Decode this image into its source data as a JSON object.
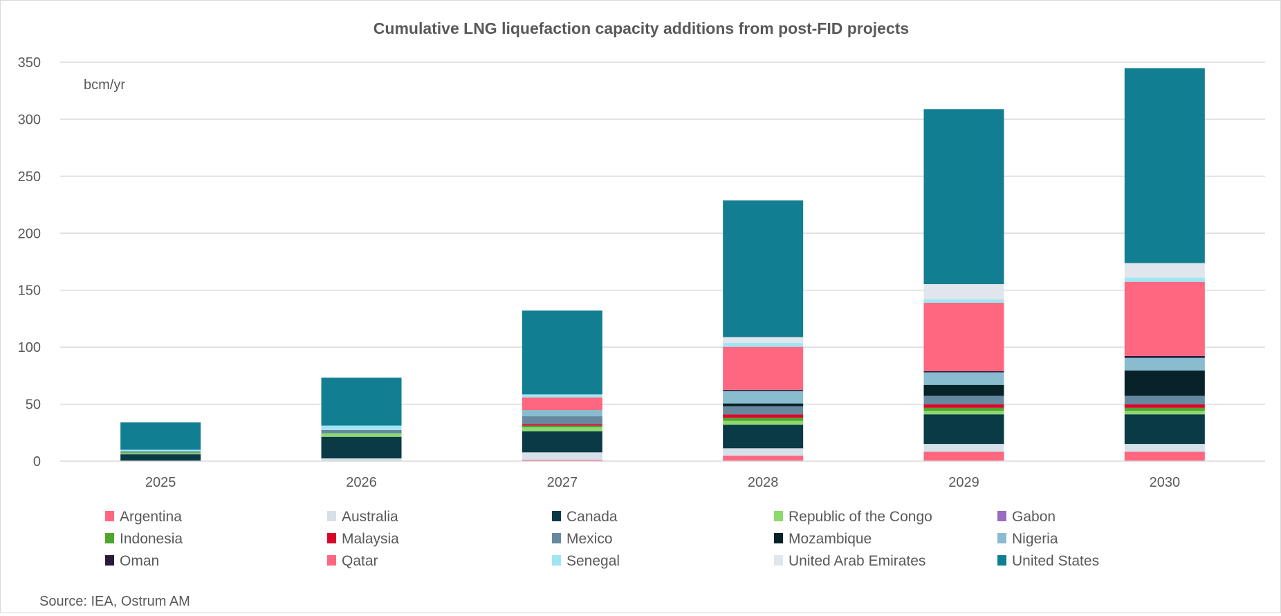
{
  "chart_data": {
    "type": "bar",
    "stacked": true,
    "title": "Cumulative LNG liquefaction capacity additions from post-FID projects",
    "unit_label": "bcm/yr",
    "xlabel": "",
    "ylabel": "",
    "ylim": [
      0,
      350
    ],
    "yticks": [
      0,
      50,
      100,
      150,
      200,
      250,
      300,
      350
    ],
    "grid": true,
    "legend_position": "bottom",
    "categories": [
      "2025",
      "2026",
      "2027",
      "2028",
      "2029",
      "2030"
    ],
    "series": [
      {
        "name": "Argentina",
        "color": "#FF6680",
        "values": [
          0,
          0,
          1.2,
          4.8,
          8.2,
          8.2
        ]
      },
      {
        "name": "Australia",
        "color": "#D6E0E8",
        "values": [
          0,
          2.4,
          6.5,
          6.5,
          6.9,
          6.9
        ]
      },
      {
        "name": "Canada",
        "color": "#0A3A46",
        "values": [
          6,
          19,
          18.5,
          20.6,
          26,
          26
        ]
      },
      {
        "name": "Republic of the Congo",
        "color": "#8CD96E",
        "values": [
          1,
          3,
          3.4,
          3.4,
          3,
          3
        ]
      },
      {
        "name": "Gabon",
        "color": "#9B6BC4",
        "values": [
          0,
          0,
          0,
          0,
          0,
          0
        ]
      },
      {
        "name": "Indonesia",
        "color": "#4EA52E",
        "values": [
          0.5,
          0,
          1.5,
          2.7,
          2.7,
          2.7
        ]
      },
      {
        "name": "Malaysia",
        "color": "#D9062A",
        "values": [
          0,
          0,
          1.3,
          3,
          3,
          3
        ]
      },
      {
        "name": "Mexico",
        "color": "#66899F",
        "values": [
          1,
          3,
          7,
          7.2,
          7.5,
          7.5
        ]
      },
      {
        "name": "Mozambique",
        "color": "#08222A",
        "values": [
          0,
          0,
          0,
          2.4,
          9.6,
          22.3
        ]
      },
      {
        "name": "Nigeria",
        "color": "#88BCCE",
        "values": [
          0,
          0,
          5.5,
          11,
          11,
          11
        ]
      },
      {
        "name": "Oman",
        "color": "#2A1A3C",
        "values": [
          0,
          0,
          0,
          1,
          1,
          1.7
        ]
      },
      {
        "name": "Qatar",
        "color": "#FF6680",
        "values": [
          0,
          0,
          11,
          37.7,
          60,
          65
        ]
      },
      {
        "name": "Senegal",
        "color": "#A0E6F2",
        "values": [
          1.5,
          3.8,
          2.7,
          3.4,
          3,
          3.8
        ]
      },
      {
        "name": "United Arab Emirates",
        "color": "#E0E6EC",
        "values": [
          0,
          0,
          0,
          5.1,
          13.4,
          12.7
        ]
      },
      {
        "name": "United States",
        "color": "#127E92",
        "values": [
          24,
          42,
          73.5,
          120,
          153.4,
          171
        ]
      }
    ],
    "source": "Source: IEA, Ostrum AM"
  }
}
